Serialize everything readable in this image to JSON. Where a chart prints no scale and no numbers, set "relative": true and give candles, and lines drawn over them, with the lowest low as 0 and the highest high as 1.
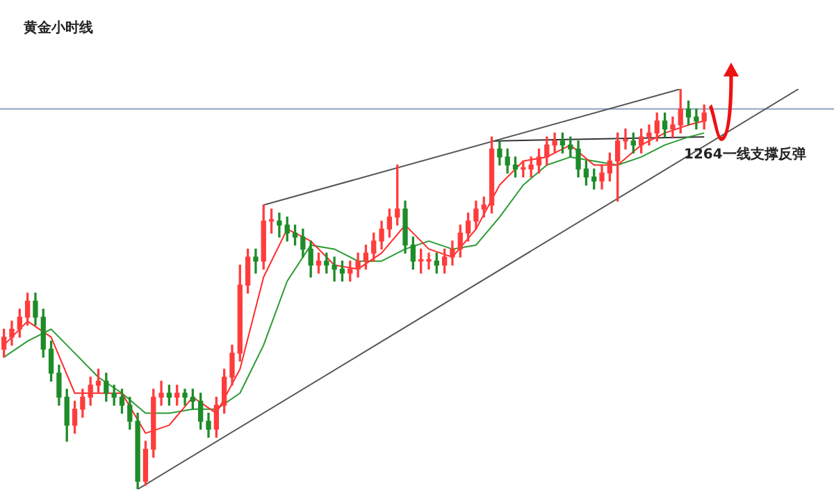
{
  "chart_data": {
    "type": "candlestick",
    "title": "黄金小时线",
    "relative": true,
    "categories": [
      null,
      null,
      null,
      null,
      null,
      null,
      null,
      null,
      null,
      null,
      null,
      null,
      null,
      null,
      null,
      null,
      null,
      null,
      null,
      null,
      null,
      null,
      null,
      null,
      null,
      null,
      null,
      null,
      null,
      null,
      null,
      null,
      null,
      null,
      null,
      null,
      null,
      null,
      null,
      null,
      null,
      null,
      null,
      null,
      null,
      null,
      null,
      null,
      null,
      null,
      null,
      null,
      null,
      null,
      null,
      null,
      null,
      null,
      null,
      null,
      null,
      null,
      null,
      null,
      null,
      null,
      null,
      null,
      null,
      null,
      null,
      null,
      null,
      null,
      null,
      null,
      null,
      null,
      null,
      null,
      null,
      null,
      null,
      null,
      null,
      null,
      null,
      null,
      null,
      null,
      null,
      null,
      null,
      null,
      null,
      null,
      null,
      null,
      null,
      null,
      null,
      null,
      null,
      null,
      null,
      null
    ],
    "ohlc": [
      [
        0.35,
        0.4,
        0.33,
        0.38
      ],
      [
        0.38,
        0.42,
        0.36,
        0.4
      ],
      [
        0.4,
        0.45,
        0.38,
        0.43
      ],
      [
        0.43,
        0.49,
        0.41,
        0.47
      ],
      [
        0.47,
        0.49,
        0.41,
        0.43
      ],
      [
        0.43,
        0.45,
        0.33,
        0.35
      ],
      [
        0.35,
        0.37,
        0.27,
        0.29
      ],
      [
        0.29,
        0.31,
        0.21,
        0.23
      ],
      [
        0.23,
        0.25,
        0.12,
        0.16
      ],
      [
        0.16,
        0.22,
        0.14,
        0.2
      ],
      [
        0.2,
        0.25,
        0.18,
        0.23
      ],
      [
        0.23,
        0.28,
        0.21,
        0.26
      ],
      [
        0.26,
        0.3,
        0.24,
        0.27
      ],
      [
        0.27,
        0.29,
        0.22,
        0.24
      ],
      [
        0.24,
        0.26,
        0.21,
        0.23
      ],
      [
        0.23,
        0.25,
        0.19,
        0.21
      ],
      [
        0.21,
        0.23,
        0.15,
        0.17
      ],
      [
        0.17,
        0.19,
        0,
        0.02
      ],
      [
        0.02,
        0.12,
        0.01,
        0.1
      ],
      [
        0.1,
        0.25,
        0.08,
        0.23
      ],
      [
        0.23,
        0.27,
        0.21,
        0.24
      ],
      [
        0.24,
        0.26,
        0.21,
        0.23
      ],
      [
        0.23,
        0.26,
        0.21,
        0.24
      ],
      [
        0.24,
        0.25,
        0.21,
        0.23
      ],
      [
        0.23,
        0.25,
        0.2,
        0.22
      ],
      [
        0.22,
        0.24,
        0.15,
        0.17
      ],
      [
        0.17,
        0.19,
        0.13,
        0.15
      ],
      [
        0.15,
        0.23,
        0.13,
        0.21
      ],
      [
        0.21,
        0.3,
        0.19,
        0.28
      ],
      [
        0.28,
        0.36,
        0.26,
        0.34
      ],
      [
        0.34,
        0.56,
        0.32,
        0.51
      ],
      [
        0.51,
        0.6,
        0.49,
        0.58
      ],
      [
        0.58,
        0.6,
        0.54,
        0.57
      ],
      [
        0.57,
        0.71,
        0.55,
        0.67
      ],
      [
        0.67,
        0.7,
        0.64,
        0.67
      ],
      [
        0.67,
        0.69,
        0.63,
        0.66
      ],
      [
        0.66,
        0.68,
        0.62,
        0.64
      ],
      [
        0.64,
        0.66,
        0.61,
        0.63
      ],
      [
        0.63,
        0.65,
        0.58,
        0.6
      ],
      [
        0.6,
        0.62,
        0.53,
        0.56
      ],
      [
        0.56,
        0.59,
        0.54,
        0.57
      ],
      [
        0.57,
        0.59,
        0.54,
        0.56
      ],
      [
        0.56,
        0.58,
        0.52,
        0.55
      ],
      [
        0.55,
        0.57,
        0.52,
        0.54
      ],
      [
        0.54,
        0.57,
        0.52,
        0.55
      ],
      [
        0.55,
        0.59,
        0.53,
        0.57
      ],
      [
        0.57,
        0.61,
        0.55,
        0.59
      ],
      [
        0.59,
        0.64,
        0.57,
        0.62
      ],
      [
        0.62,
        0.67,
        0.6,
        0.65
      ],
      [
        0.65,
        0.7,
        0.63,
        0.68
      ],
      [
        0.68,
        0.81,
        0.66,
        0.7
      ],
      [
        0.7,
        0.72,
        0.59,
        0.61
      ],
      [
        0.61,
        0.63,
        0.55,
        0.57
      ],
      [
        0.57,
        0.6,
        0.54,
        0.57
      ],
      [
        0.57,
        0.59,
        0.55,
        0.57
      ],
      [
        0.57,
        0.59,
        0.54,
        0.56
      ],
      [
        0.56,
        0.6,
        0.54,
        0.58
      ],
      [
        0.58,
        0.62,
        0.56,
        0.6
      ],
      [
        0.6,
        0.66,
        0.58,
        0.64
      ],
      [
        0.64,
        0.69,
        0.62,
        0.67
      ],
      [
        0.67,
        0.72,
        0.65,
        0.7
      ],
      [
        0.7,
        0.73,
        0.68,
        0.71
      ],
      [
        0.71,
        0.88,
        0.69,
        0.85
      ],
      [
        0.85,
        0.87,
        0.81,
        0.83
      ],
      [
        0.83,
        0.85,
        0.79,
        0.81
      ],
      [
        0.81,
        0.83,
        0.78,
        0.8
      ],
      [
        0.8,
        0.82,
        0.78,
        0.8
      ],
      [
        0.8,
        0.83,
        0.78,
        0.81
      ],
      [
        0.81,
        0.85,
        0.79,
        0.83
      ],
      [
        0.83,
        0.88,
        0.81,
        0.86
      ],
      [
        0.86,
        0.89,
        0.84,
        0.87
      ],
      [
        0.87,
        0.89,
        0.84,
        0.86
      ],
      [
        0.86,
        0.88,
        0.83,
        0.85
      ],
      [
        0.85,
        0.87,
        0.78,
        0.8
      ],
      [
        0.8,
        0.82,
        0.76,
        0.78
      ],
      [
        0.78,
        0.8,
        0.75,
        0.77
      ],
      [
        0.77,
        0.81,
        0.75,
        0.79
      ],
      [
        0.79,
        0.84,
        0.77,
        0.82
      ],
      [
        0.82,
        0.89,
        0.72,
        0.87
      ],
      [
        0.87,
        0.9,
        0.85,
        0.87
      ],
      [
        0.87,
        0.89,
        0.84,
        0.86
      ],
      [
        0.86,
        0.9,
        0.84,
        0.88
      ],
      [
        0.88,
        0.91,
        0.86,
        0.89
      ],
      [
        0.89,
        0.94,
        0.87,
        0.92
      ],
      [
        0.92,
        0.94,
        0.88,
        0.9
      ],
      [
        0.9,
        0.93,
        0.88,
        0.91
      ],
      [
        0.91,
        1,
        0.89,
        0.95
      ],
      [
        0.95,
        0.97,
        0.91,
        0.93
      ],
      [
        0.93,
        0.95,
        0.9,
        0.92
      ],
      [
        0.92,
        0.96,
        0.9,
        0.94
      ],
      null,
      null,
      null,
      null,
      null,
      null,
      null,
      null,
      null,
      null,
      null,
      null,
      null,
      null,
      null,
      null
    ],
    "series": [
      {
        "type": "line",
        "color": "#ff2a2a",
        "values": [
          0.36,
          null,
          null,
          0.42,
          null,
          null,
          0.38,
          null,
          null,
          0.24,
          null,
          null,
          0.24,
          null,
          null,
          0.24,
          null,
          null,
          0.14,
          null,
          null,
          0.16,
          null,
          null,
          0.23,
          null,
          null,
          0.19,
          null,
          null,
          0.3,
          null,
          null,
          0.53,
          null,
          null,
          0.65,
          null,
          null,
          0.62,
          null,
          null,
          0.56,
          null,
          null,
          0.55,
          null,
          null,
          0.59,
          null,
          null,
          0.66,
          null,
          null,
          0.6,
          null,
          null,
          0.58,
          null,
          null,
          0.65,
          null,
          null,
          0.76,
          null,
          null,
          0.82,
          null,
          null,
          0.83,
          null,
          null,
          0.86,
          null,
          null,
          0.81,
          null,
          null,
          0.81,
          null,
          null,
          0.86,
          null,
          null,
          0.89,
          null,
          null,
          0.91,
          null,
          0.92,
          null,
          null,
          null,
          null,
          null,
          null,
          null,
          null,
          null,
          null,
          null,
          null,
          null,
          null,
          null,
          null
        ]
      },
      {
        "type": "line",
        "color": "#2a9a32",
        "values": [
          0.33,
          null,
          null,
          0.37,
          null,
          null,
          0.4,
          null,
          null,
          0.34,
          null,
          null,
          0.28,
          null,
          null,
          0.24,
          null,
          null,
          0.19,
          null,
          null,
          0.19,
          null,
          null,
          0.2,
          null,
          null,
          0.2,
          null,
          null,
          0.24,
          null,
          null,
          0.36,
          null,
          null,
          0.52,
          null,
          null,
          0.61,
          null,
          null,
          0.6,
          null,
          null,
          0.57,
          null,
          null,
          0.57,
          null,
          null,
          0.6,
          null,
          null,
          0.62,
          null,
          null,
          0.6,
          null,
          null,
          0.61,
          null,
          null,
          0.68,
          null,
          null,
          0.76,
          null,
          null,
          0.81,
          null,
          null,
          0.83,
          null,
          null,
          0.82,
          null,
          null,
          0.81,
          null,
          null,
          0.83,
          null,
          null,
          0.86,
          null,
          null,
          0.88,
          null,
          0.89,
          null,
          null,
          null,
          null,
          null,
          null,
          null,
          null,
          null,
          null,
          null,
          null,
          null,
          null,
          null,
          null
        ]
      },
      {
        "type": "line",
        "color": "#555555",
        "values": [
          null,
          null,
          null,
          null,
          null,
          null,
          null,
          null,
          null,
          null,
          null,
          null,
          null,
          null,
          null,
          null,
          null,
          null,
          null,
          null,
          null,
          null,
          null,
          null,
          null,
          null,
          null,
          null,
          null,
          null,
          null,
          null,
          null,
          0.71,
          null,
          null,
          null,
          null,
          null,
          null,
          null,
          null,
          null,
          null,
          null,
          null,
          null,
          null,
          null,
          null,
          null,
          null,
          null,
          null,
          null,
          null,
          null,
          null,
          null,
          null,
          null,
          null,
          null,
          null,
          null,
          null,
          null,
          null,
          null,
          null,
          null,
          null,
          null,
          null,
          null,
          null,
          null,
          null,
          null,
          null,
          null,
          null,
          null,
          null,
          null,
          null,
          1,
          null,
          null,
          null,
          null,
          null,
          null,
          null,
          null,
          null,
          null,
          null,
          null,
          null,
          null,
          null,
          null,
          null,
          null,
          null
        ]
      },
      {
        "type": "line",
        "color": "#555555",
        "values": [
          null,
          null,
          null,
          null,
          null,
          null,
          null,
          null,
          null,
          null,
          null,
          null,
          null,
          null,
          null,
          null,
          null,
          0,
          null,
          null,
          null,
          null,
          null,
          null,
          null,
          null,
          null,
          null,
          null,
          null,
          null,
          null,
          null,
          null,
          null,
          null,
          null,
          null,
          null,
          null,
          null,
          null,
          null,
          null,
          null,
          null,
          null,
          null,
          null,
          null,
          null,
          null,
          null,
          null,
          null,
          null,
          null,
          null,
          null,
          null,
          null,
          null,
          null,
          null,
          null,
          null,
          null,
          null,
          null,
          null,
          null,
          null,
          null,
          null,
          null,
          null,
          null,
          null,
          null,
          null,
          null,
          null,
          null,
          null,
          null,
          null,
          null,
          null,
          null,
          null,
          null,
          null,
          null,
          null,
          null,
          null,
          null,
          null,
          null,
          null,
          null,
          1,
          null,
          null,
          null,
          null
        ]
      },
      {
        "type": "line",
        "color": "#333333",
        "values": [
          null,
          null,
          null,
          null,
          null,
          null,
          null,
          null,
          null,
          null,
          null,
          null,
          null,
          null,
          null,
          null,
          null,
          null,
          null,
          null,
          null,
          null,
          null,
          null,
          null,
          null,
          null,
          null,
          null,
          null,
          null,
          null,
          null,
          null,
          null,
          null,
          null,
          null,
          null,
          null,
          null,
          null,
          null,
          null,
          null,
          null,
          null,
          null,
          null,
          null,
          null,
          null,
          null,
          null,
          null,
          null,
          null,
          null,
          null,
          null,
          null,
          null,
          0.87,
          null,
          null,
          null,
          null,
          null,
          null,
          null,
          null,
          null,
          null,
          null,
          null,
          null,
          null,
          null,
          null,
          null,
          null,
          null,
          null,
          null,
          null,
          null,
          null,
          null,
          null,
          0.88,
          null,
          null,
          null,
          null,
          null,
          null,
          null,
          null,
          null,
          null,
          null,
          null,
          null,
          null,
          null,
          null
        ]
      }
    ],
    "ref_lines": [
      {
        "axis": "y",
        "value": 0.95,
        "color": "#8ea2c4"
      }
    ],
    "annotations": [
      "1264一线支撑反弹"
    ]
  }
}
